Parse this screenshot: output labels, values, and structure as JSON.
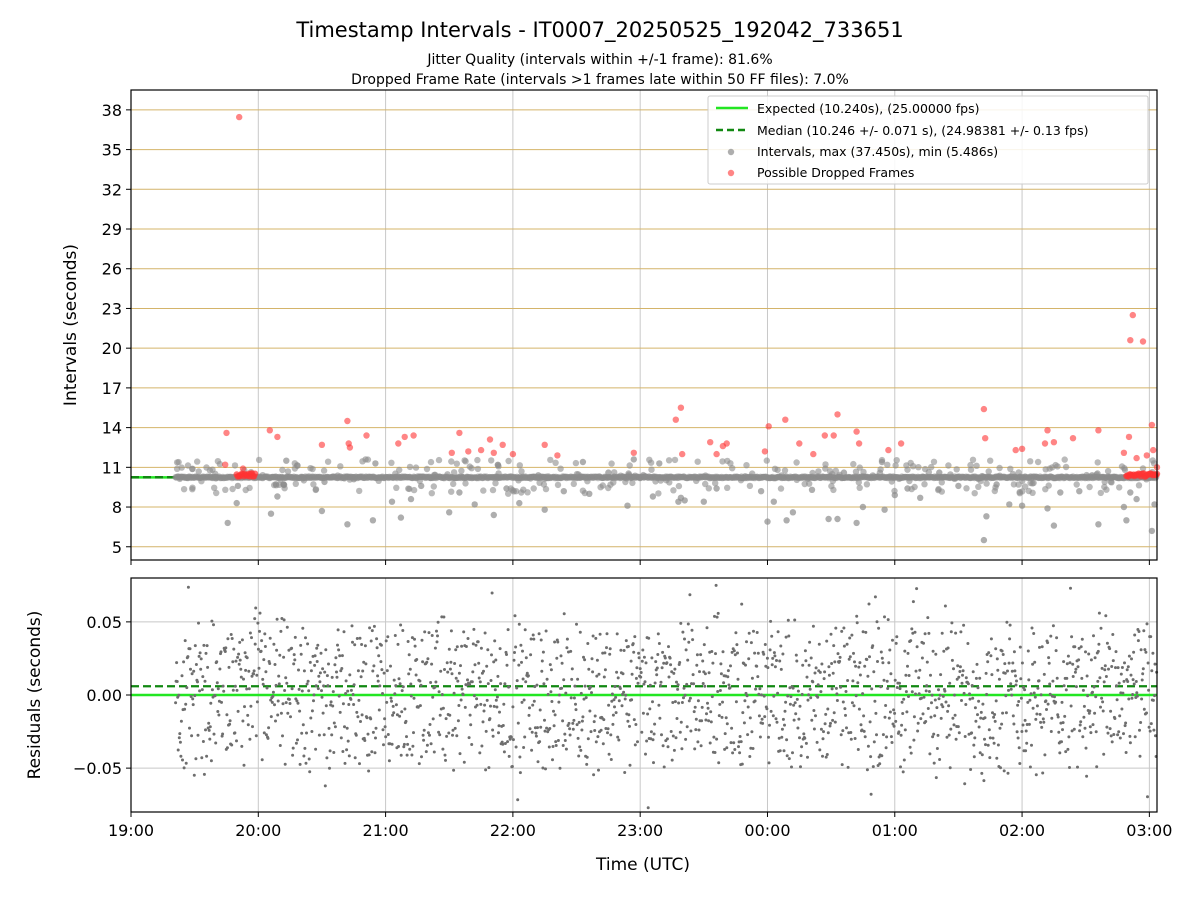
{
  "figure": {
    "title": "Timestamp Intervals - IT0007_20250525_192042_733651",
    "subtitle_1": "Jitter Quality (intervals within +/-1 frame): 81.6%",
    "subtitle_2": "Dropped Frame Rate (intervals >1 frames late within 50 FF files): 7.0%",
    "xlabel": "Time (UTC)"
  },
  "colors": {
    "expected": "#22e622",
    "median": "#118811",
    "intervals": "#8c8c8c",
    "dropped": "#ff3333",
    "residuals": "#6e6e6e",
    "grid": "#c8c8c8",
    "hgrid_top": "#d4b46a"
  },
  "chart_data": [
    {
      "type": "scatter",
      "ylabel": "Intervals (seconds)",
      "ylim": [
        4,
        39.5
      ],
      "yticks": [
        5,
        8,
        11,
        14,
        17,
        20,
        23,
        26,
        29,
        32,
        35,
        38
      ],
      "xticks": [
        "19:00",
        "20:00",
        "21:00",
        "22:00",
        "23:00",
        "00:00",
        "01:00",
        "02:00",
        "03:00"
      ],
      "xlim_hours": [
        19.0,
        27.06
      ],
      "x_start_hours": 19.35,
      "expected": 10.24,
      "median": 10.246,
      "legend": {
        "position": "top-right",
        "entries": [
          "Expected (10.240s), (25.00000 fps)",
          "Median (10.246 +/- 0.071 s), (24.98381 +/- 0.13 fps)",
          "Intervals, max (37.450s), min (5.486s)",
          "Possible Dropped Frames"
        ]
      },
      "series": [
        {
          "name": "Intervals, max (37.450s), min (5.486s)",
          "points": [
            [
              19.76,
              6.8
            ],
            [
              19.83,
              8.3
            ],
            [
              19.84,
              9.6
            ],
            [
              20.1,
              7.5
            ],
            [
              20.15,
              8.8
            ],
            [
              20.2,
              9.7
            ],
            [
              20.22,
              11.5
            ],
            [
              20.5,
              7.7
            ],
            [
              20.52,
              9.9
            ],
            [
              20.7,
              6.7
            ],
            [
              20.75,
              10.1
            ],
            [
              20.9,
              7.0
            ],
            [
              20.92,
              11.3
            ],
            [
              21.05,
              8.4
            ],
            [
              21.12,
              7.2
            ],
            [
              21.2,
              8.6
            ],
            [
              21.28,
              9.6
            ],
            [
              21.35,
              10.2
            ],
            [
              21.5,
              7.6
            ],
            [
              21.58,
              9.1
            ],
            [
              21.7,
              8.2
            ],
            [
              21.85,
              7.4
            ],
            [
              21.95,
              9.4
            ],
            [
              22.05,
              8.3
            ],
            [
              22.2,
              10.4
            ],
            [
              22.25,
              7.8
            ],
            [
              22.4,
              9.2
            ],
            [
              22.55,
              11.4
            ],
            [
              22.6,
              9.0
            ],
            [
              22.75,
              10.6
            ],
            [
              22.9,
              8.1
            ],
            [
              22.95,
              11.6
            ],
            [
              23.1,
              8.8
            ],
            [
              23.15,
              11.3
            ],
            [
              23.3,
              8.4
            ],
            [
              23.32,
              8.7
            ],
            [
              23.35,
              8.5
            ],
            [
              23.5,
              8.4
            ],
            [
              23.6,
              9.4
            ],
            [
              23.8,
              10.2
            ],
            [
              23.95,
              9.2
            ],
            [
              24.0,
              6.9
            ],
            [
              24.05,
              8.4
            ],
            [
              24.15,
              7.0
            ],
            [
              24.2,
              7.6
            ],
            [
              24.35,
              9.3
            ],
            [
              24.48,
              7.1
            ],
            [
              24.55,
              7.1
            ],
            [
              24.6,
              10.6
            ],
            [
              24.7,
              6.8
            ],
            [
              24.75,
              8.0
            ],
            [
              24.9,
              11.4
            ],
            [
              24.92,
              7.8
            ],
            [
              25.0,
              8.9
            ],
            [
              25.1,
              9.4
            ],
            [
              25.2,
              8.7
            ],
            [
              25.35,
              10.6
            ],
            [
              25.5,
              9.6
            ],
            [
              25.7,
              5.5
            ],
            [
              25.72,
              7.3
            ],
            [
              25.8,
              9.7
            ],
            [
              25.9,
              8.2
            ],
            [
              26.0,
              8.1
            ],
            [
              26.2,
              7.9
            ],
            [
              26.25,
              6.6
            ],
            [
              26.3,
              9.1
            ],
            [
              26.45,
              9.2
            ],
            [
              26.55,
              10.4
            ],
            [
              26.6,
              6.7
            ],
            [
              26.8,
              8.0
            ],
            [
              26.82,
              7.0
            ],
            [
              26.85,
              9.1
            ],
            [
              26.9,
              8.6
            ],
            [
              27.02,
              6.2
            ],
            [
              27.04,
              8.2
            ]
          ]
        },
        {
          "name": "Possible Dropped Frames",
          "points": [
            [
              19.75,
              13.6
            ],
            [
              19.74,
              11.2
            ],
            [
              19.85,
              37.45
            ],
            [
              19.88,
              10.9
            ],
            [
              20.09,
              13.8
            ],
            [
              20.15,
              13.3
            ],
            [
              20.5,
              12.7
            ],
            [
              20.7,
              14.5
            ],
            [
              20.72,
              12.5
            ],
            [
              20.71,
              12.8
            ],
            [
              20.85,
              13.4
            ],
            [
              21.1,
              12.8
            ],
            [
              21.15,
              13.3
            ],
            [
              21.22,
              13.4
            ],
            [
              21.52,
              12.1
            ],
            [
              21.58,
              13.6
            ],
            [
              21.65,
              12.2
            ],
            [
              21.75,
              12.3
            ],
            [
              21.82,
              13.1
            ],
            [
              21.85,
              12.1
            ],
            [
              21.92,
              12.7
            ],
            [
              22.0,
              12.0
            ],
            [
              22.25,
              12.7
            ],
            [
              22.35,
              11.9
            ],
            [
              22.95,
              12.1
            ],
            [
              23.28,
              14.6
            ],
            [
              23.32,
              15.5
            ],
            [
              23.33,
              12.0
            ],
            [
              23.55,
              12.9
            ],
            [
              23.6,
              12.0
            ],
            [
              23.65,
              12.6
            ],
            [
              23.68,
              12.8
            ],
            [
              23.98,
              12.2
            ],
            [
              24.01,
              14.1
            ],
            [
              24.14,
              14.6
            ],
            [
              24.25,
              12.8
            ],
            [
              24.36,
              12.0
            ],
            [
              24.45,
              13.4
            ],
            [
              24.52,
              13.4
            ],
            [
              24.55,
              15.0
            ],
            [
              24.7,
              13.7
            ],
            [
              24.72,
              12.8
            ],
            [
              24.95,
              12.3
            ],
            [
              25.05,
              12.8
            ],
            [
              25.7,
              15.4
            ],
            [
              25.71,
              13.2
            ],
            [
              25.95,
              12.3
            ],
            [
              26.0,
              12.4
            ],
            [
              26.18,
              12.8
            ],
            [
              26.2,
              13.8
            ],
            [
              26.25,
              12.9
            ],
            [
              26.4,
              13.2
            ],
            [
              26.6,
              13.8
            ],
            [
              26.8,
              12.1
            ],
            [
              26.84,
              13.3
            ],
            [
              26.85,
              20.6
            ],
            [
              26.87,
              22.5
            ],
            [
              26.9,
              11.7
            ],
            [
              26.95,
              20.5
            ],
            [
              26.98,
              11.9
            ],
            [
              27.02,
              14.2
            ],
            [
              27.03,
              12.3
            ],
            [
              27.06,
              11.0
            ]
          ]
        }
      ]
    },
    {
      "type": "scatter",
      "ylabel": "Residuals (seconds)",
      "ylim": [
        -0.08,
        0.08
      ],
      "yticks": [
        "0.05",
        "0.00",
        "−0.05"
      ],
      "ytick_values": [
        0.05,
        0.0,
        -0.05
      ],
      "expected": 0.0,
      "median": 0.006
    }
  ]
}
